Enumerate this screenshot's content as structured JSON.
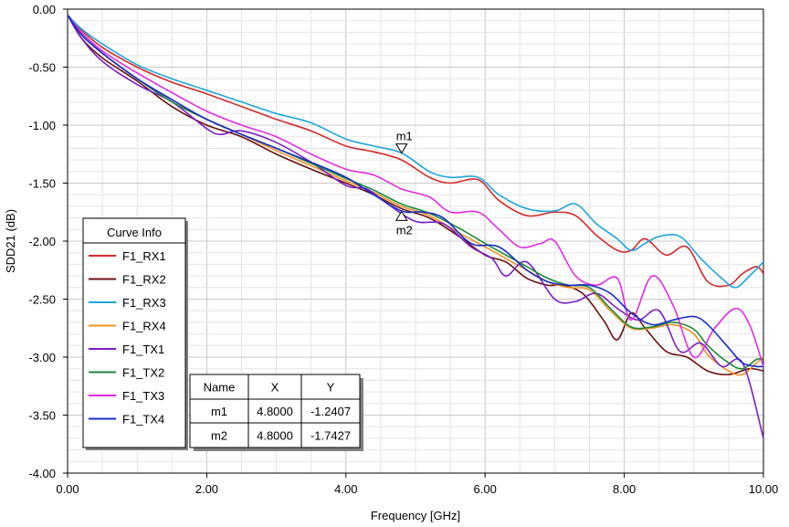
{
  "chart_data": {
    "type": "line",
    "title": "",
    "xlabel": "Frequency [GHz]",
    "ylabel": "SDD21 (dB)",
    "xlim": [
      0,
      10
    ],
    "ylim": [
      -4,
      0
    ],
    "grid": true,
    "x_ticks": [
      "0.00",
      "2.00",
      "4.00",
      "6.00",
      "8.00",
      "10.00"
    ],
    "y_ticks": [
      "0.00",
      "-0.50",
      "-1.00",
      "-1.50",
      "-2.00",
      "-2.50",
      "-3.00",
      "-3.50",
      "-4.00"
    ],
    "legend_title": "Curve Info",
    "legend_position": "lower-left",
    "series": [
      {
        "name": "F1_RX1",
        "color": "#d42a2a",
        "x": [
          0,
          0.2,
          0.5,
          1,
          1.5,
          2,
          2.5,
          3,
          3.5,
          4,
          4.4,
          4.8,
          5.2,
          5.5,
          5.9,
          6.2,
          6.6,
          7.0,
          7.3,
          7.6,
          7.9,
          8.1,
          8.3,
          8.6,
          8.9,
          9.2,
          9.5,
          9.7,
          9.9,
          10
        ],
        "y": [
          -0.05,
          -0.18,
          -0.33,
          -0.5,
          -0.63,
          -0.73,
          -0.84,
          -0.95,
          -1.05,
          -1.18,
          -1.23,
          -1.3,
          -1.45,
          -1.5,
          -1.47,
          -1.65,
          -1.78,
          -1.75,
          -1.78,
          -1.95,
          -2.08,
          -2.08,
          -1.98,
          -2.12,
          -2.05,
          -2.35,
          -2.38,
          -2.28,
          -2.22,
          -2.28
        ]
      },
      {
        "name": "F1_RX2",
        "color": "#6b1010",
        "x": [
          0,
          0.2,
          0.5,
          1,
          1.5,
          2,
          2.5,
          3,
          3.5,
          4,
          4.4,
          4.8,
          5.2,
          5.6,
          6.0,
          6.3,
          6.6,
          6.9,
          7.1,
          7.4,
          7.7,
          7.9,
          8.1,
          8.3,
          8.6,
          8.9,
          9.2,
          9.5,
          9.8,
          10
        ],
        "y": [
          -0.05,
          -0.25,
          -0.42,
          -0.62,
          -0.84,
          -1.0,
          -1.1,
          -1.25,
          -1.38,
          -1.5,
          -1.6,
          -1.72,
          -1.8,
          -1.95,
          -2.12,
          -2.18,
          -2.32,
          -2.38,
          -2.38,
          -2.45,
          -2.68,
          -2.85,
          -2.62,
          -2.75,
          -2.95,
          -3.0,
          -3.12,
          -3.15,
          -3.1,
          -3.12
        ]
      },
      {
        "name": "F1_RX3",
        "color": "#1ea6dc",
        "x": [
          0,
          0.2,
          0.5,
          1,
          1.5,
          2,
          2.5,
          3,
          3.5,
          4,
          4.4,
          4.8,
          5.2,
          5.5,
          5.9,
          6.2,
          6.6,
          7.0,
          7.3,
          7.6,
          7.9,
          8.1,
          8.3,
          8.5,
          8.8,
          9.1,
          9.4,
          9.6,
          9.8,
          10
        ],
        "y": [
          -0.05,
          -0.17,
          -0.3,
          -0.48,
          -0.6,
          -0.7,
          -0.8,
          -0.9,
          -0.98,
          -1.12,
          -1.18,
          -1.24,
          -1.4,
          -1.45,
          -1.45,
          -1.6,
          -1.72,
          -1.74,
          -1.68,
          -1.85,
          -1.98,
          -2.08,
          -2.02,
          -1.96,
          -1.96,
          -2.15,
          -2.32,
          -2.4,
          -2.3,
          -2.18
        ]
      },
      {
        "name": "F1_RX4",
        "color": "#f09020",
        "x": [
          0,
          0.2,
          0.5,
          1,
          1.5,
          2,
          2.5,
          3,
          3.5,
          4,
          4.4,
          4.8,
          5.2,
          5.6,
          6.0,
          6.3,
          6.6,
          6.9,
          7.2,
          7.5,
          7.8,
          8.1,
          8.4,
          8.7,
          9.0,
          9.2,
          9.5,
          9.7,
          9.9,
          10
        ],
        "y": [
          -0.05,
          -0.22,
          -0.38,
          -0.6,
          -0.8,
          -0.95,
          -1.08,
          -1.22,
          -1.35,
          -1.48,
          -1.58,
          -1.7,
          -1.78,
          -1.92,
          -2.05,
          -2.15,
          -2.25,
          -2.35,
          -2.4,
          -2.42,
          -2.6,
          -2.75,
          -2.75,
          -2.72,
          -2.8,
          -2.98,
          -3.12,
          -3.15,
          -3.05,
          -3.0
        ]
      },
      {
        "name": "F1_TX1",
        "color": "#7a1fc4",
        "x": [
          0,
          0.2,
          0.5,
          1,
          1.5,
          2,
          2.2,
          2.5,
          3,
          3.5,
          4,
          4.3,
          4.6,
          5.0,
          5.4,
          5.8,
          6.1,
          6.3,
          6.6,
          7.0,
          7.3,
          7.6,
          7.9,
          8.2,
          8.5,
          8.8,
          9.1,
          9.4,
          9.7,
          10
        ],
        "y": [
          -0.05,
          -0.25,
          -0.45,
          -0.65,
          -0.8,
          -1.03,
          -1.08,
          -1.05,
          -1.15,
          -1.32,
          -1.52,
          -1.55,
          -1.68,
          -1.83,
          -1.85,
          -2.05,
          -2.15,
          -2.3,
          -2.18,
          -2.5,
          -2.52,
          -2.45,
          -2.58,
          -2.68,
          -2.6,
          -2.95,
          -2.88,
          -3.08,
          -3.05,
          -3.7
        ]
      },
      {
        "name": "F1_TX2",
        "color": "#1e8a3c",
        "x": [
          0,
          0.2,
          0.5,
          1,
          1.5,
          2,
          2.5,
          3,
          3.5,
          4,
          4.4,
          4.8,
          5.2,
          5.6,
          6.0,
          6.3,
          6.6,
          6.9,
          7.2,
          7.5,
          7.8,
          8.1,
          8.4,
          8.7,
          9.0,
          9.2,
          9.5,
          9.7,
          9.9,
          10
        ],
        "y": [
          -0.05,
          -0.22,
          -0.38,
          -0.6,
          -0.8,
          -0.95,
          -1.08,
          -1.2,
          -1.33,
          -1.46,
          -1.56,
          -1.68,
          -1.76,
          -1.88,
          -2.02,
          -2.12,
          -2.22,
          -2.32,
          -2.38,
          -2.4,
          -2.58,
          -2.74,
          -2.74,
          -2.7,
          -2.76,
          -2.9,
          -3.05,
          -3.1,
          -3.02,
          -3.02
        ]
      },
      {
        "name": "F1_TX3",
        "color": "#e02ce0",
        "x": [
          0,
          0.2,
          0.5,
          1,
          1.5,
          2,
          2.5,
          3,
          3.5,
          4,
          4.4,
          4.8,
          5.2,
          5.5,
          5.9,
          6.2,
          6.5,
          6.8,
          7.0,
          7.3,
          7.6,
          7.9,
          8.1,
          8.4,
          8.7,
          9.0,
          9.3,
          9.6,
          9.8,
          10
        ],
        "y": [
          -0.05,
          -0.2,
          -0.36,
          -0.55,
          -0.72,
          -0.88,
          -1.0,
          -1.1,
          -1.25,
          -1.38,
          -1.43,
          -1.55,
          -1.62,
          -1.75,
          -1.75,
          -1.9,
          -2.05,
          -2.02,
          -2.0,
          -2.3,
          -2.38,
          -2.32,
          -2.68,
          -2.3,
          -2.55,
          -3.0,
          -2.75,
          -2.58,
          -2.72,
          -3.08
        ]
      },
      {
        "name": "F1_TX4",
        "color": "#1a2cc8",
        "x": [
          0,
          0.2,
          0.5,
          1,
          1.5,
          2,
          2.5,
          3,
          3.5,
          4,
          4.4,
          4.8,
          5.1,
          5.4,
          5.8,
          6.2,
          6.6,
          6.9,
          7.2,
          7.5,
          7.8,
          8.1,
          8.4,
          8.7,
          9.0,
          9.2,
          9.5,
          9.7,
          9.9,
          10
        ],
        "y": [
          -0.05,
          -0.22,
          -0.38,
          -0.6,
          -0.78,
          -0.95,
          -1.08,
          -1.2,
          -1.32,
          -1.45,
          -1.6,
          -1.74,
          -1.75,
          -1.8,
          -2.02,
          -2.05,
          -2.25,
          -2.35,
          -2.38,
          -2.38,
          -2.45,
          -2.62,
          -2.72,
          -2.68,
          -2.65,
          -2.72,
          -2.92,
          -3.05,
          -3.08,
          -3.08
        ]
      }
    ],
    "markers": [
      {
        "name": "m1",
        "x": 4.8,
        "y": -1.2407,
        "shape": "down-triangle",
        "label_position": "above"
      },
      {
        "name": "m2",
        "x": 4.8,
        "y": -1.7427,
        "shape": "up-triangle",
        "label_position": "below"
      }
    ],
    "marker_table": {
      "headers": [
        "Name",
        "X",
        "Y"
      ],
      "rows": [
        [
          "m1",
          "4.8000",
          "-1.2407"
        ],
        [
          "m2",
          "4.8000",
          "-1.7427"
        ]
      ]
    }
  }
}
